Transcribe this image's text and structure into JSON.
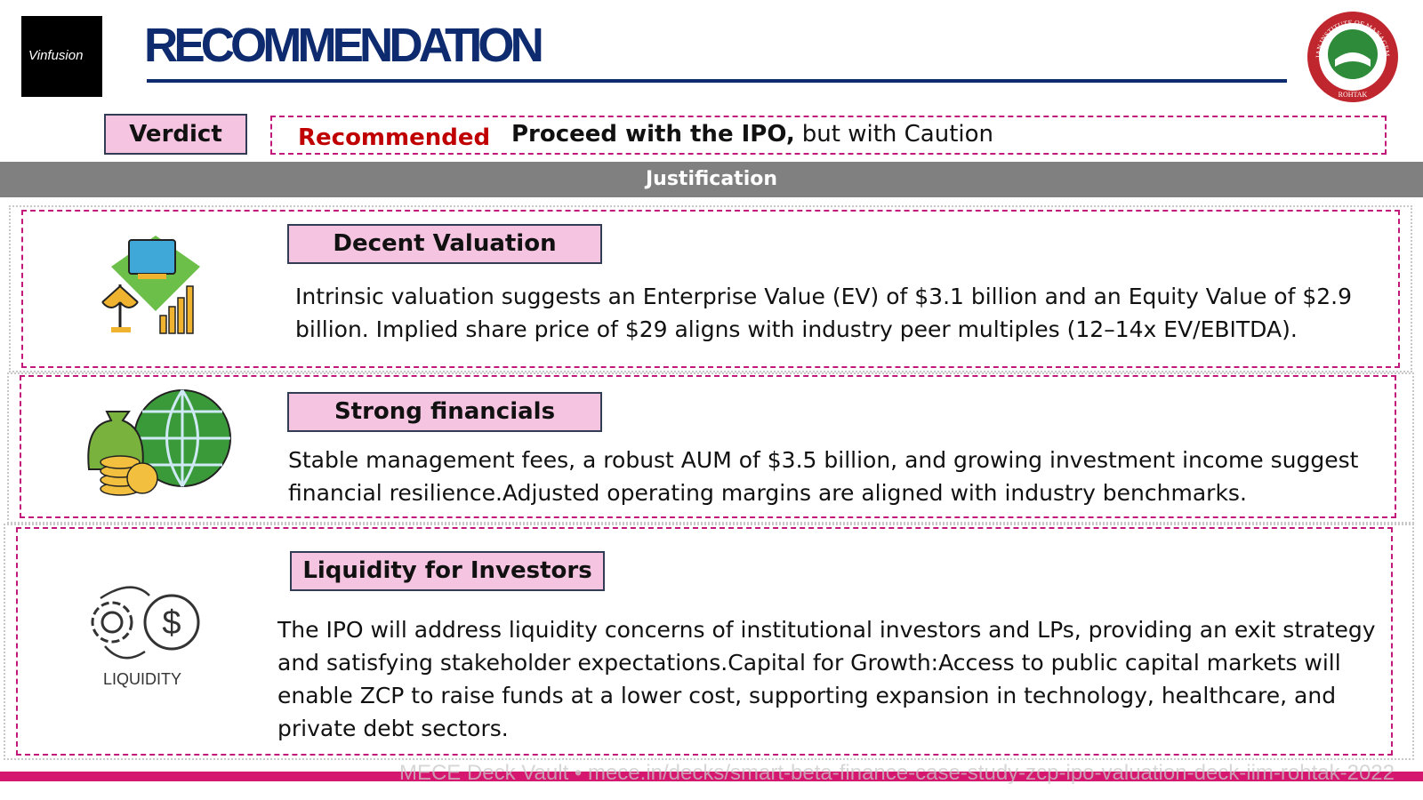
{
  "header": {
    "logo_text": "Vinfusion",
    "title": "RECOMMENDATION",
    "seal": {
      "ring_text": "INDIAN INSTITUTE OF MANAGEMENT",
      "city": "ROHTAK"
    }
  },
  "verdict": {
    "label": "Verdict",
    "status": "Recommended",
    "decision": "Proceed with the IPO,",
    "qualifier": "but with Caution"
  },
  "justification": {
    "title": "Justification",
    "items": [
      {
        "heading": "Decent Valuation",
        "body": "Intrinsic valuation suggests an Enterprise Value (EV) of $3.1 billion and an Equity Value of $2.9 billion. Implied share price of $29 aligns with industry peer multiples (12–14x EV/EBITDA)."
      },
      {
        "heading": "Strong financials",
        "body": "Stable management fees, a robust AUM of $3.5 billion, and growing investment income suggest financial resilience.Adjusted operating margins are aligned with industry benchmarks."
      },
      {
        "heading": "Liquidity for Investors",
        "icon_label": "LIQUIDITY",
        "body": "The IPO will address liquidity concerns of institutional investors and LPs, providing an exit strategy and satisfying stakeholder expectations.Capital for Growth:Access to public capital markets will enable ZCP to raise funds at a lower cost, supporting expansion in technology, healthcare, and private debt sectors."
      }
    ]
  },
  "footer": {
    "watermark": "MECE Deck Vault  •  mece.in/decks/smart-beta-finance-case-study-zcp-ipo-valuation-deck-iim-rohtak-2022"
  }
}
